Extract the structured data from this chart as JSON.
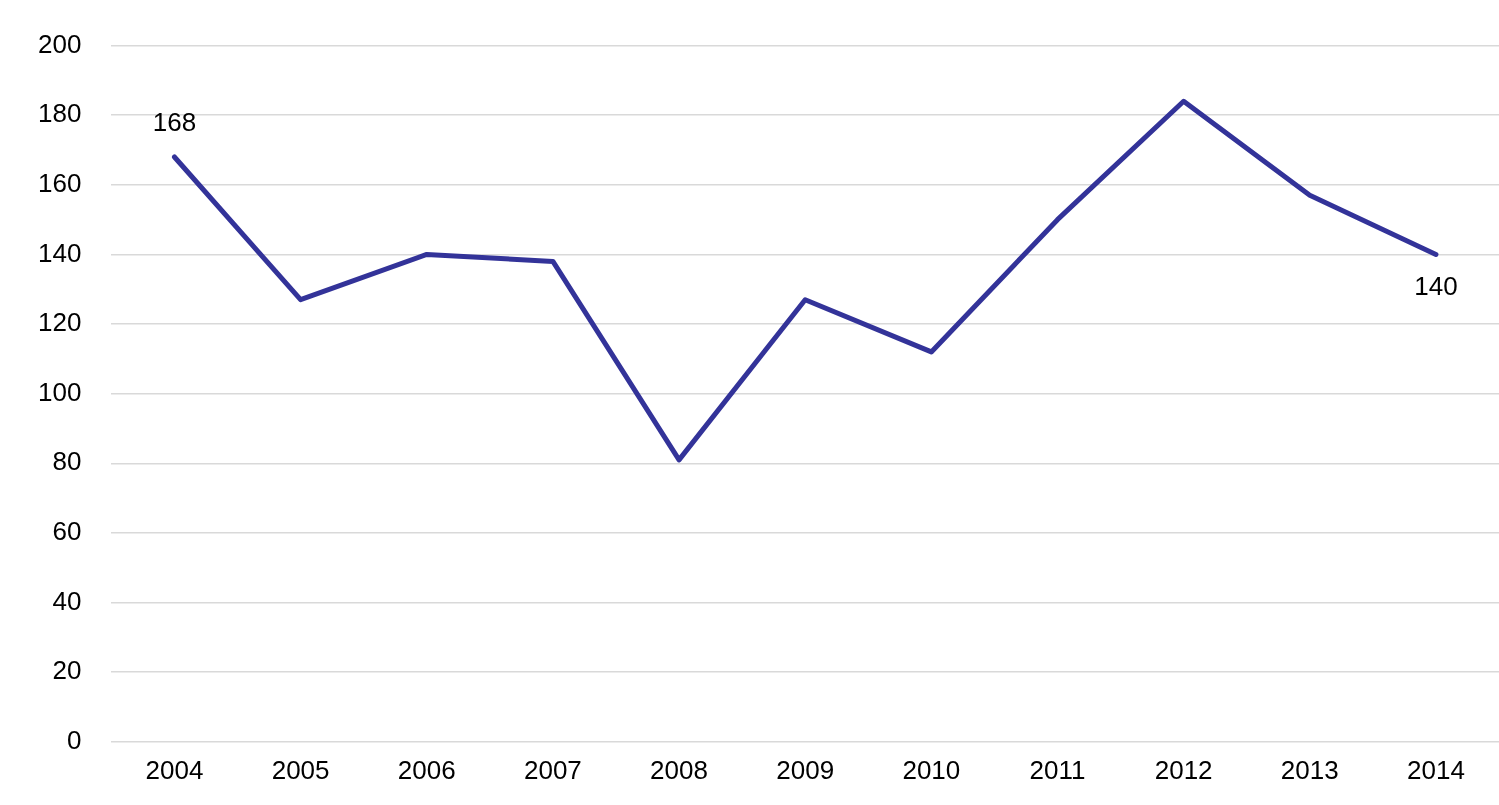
{
  "chart_data": {
    "type": "line",
    "categories": [
      "2004",
      "2005",
      "2006",
      "2007",
      "2008",
      "2009",
      "2010",
      "2011",
      "2012",
      "2013",
      "2014"
    ],
    "series": [
      {
        "color": "#333399",
        "values": [
          168,
          127,
          140,
          138,
          81,
          127,
          112,
          150,
          184,
          157,
          140
        ],
        "value_labels": [
          "168",
          null,
          null,
          null,
          null,
          null,
          null,
          null,
          null,
          null,
          "140"
        ]
      }
    ],
    "ylim": [
      0,
      200
    ],
    "yticks": [
      0,
      20,
      40,
      60,
      80,
      100,
      120,
      140,
      160,
      180,
      200
    ],
    "grid": "y",
    "legend": false,
    "marker": "none",
    "line_style": "solid"
  }
}
